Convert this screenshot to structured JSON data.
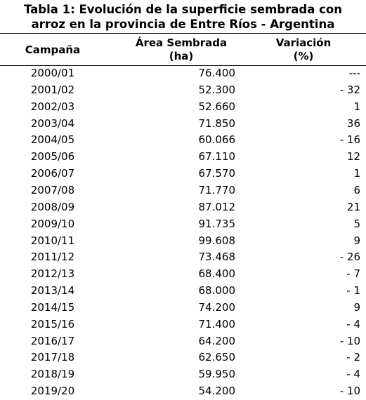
{
  "title": [
    "Tabla 1: Evolución de la superficie sembrada con",
    "arroz en la provincia de Entre Ríos - Argentina"
  ],
  "table": {
    "headers": [
      [
        "Campaña"
      ],
      [
        "Área Sembrada",
        "(ha)"
      ],
      [
        "Variación",
        "(%)"
      ]
    ],
    "rows": [
      [
        "2000/01",
        "76.400",
        "---"
      ],
      [
        "2001/02",
        "52.300",
        "- 32"
      ],
      [
        "2002/03",
        "52.660",
        "1"
      ],
      [
        "2003/04",
        "71.850",
        "36"
      ],
      [
        "2004/05",
        "60.066",
        "- 16"
      ],
      [
        "2005/06",
        "67.110",
        "12"
      ],
      [
        "2006/07",
        "67.570",
        "1"
      ],
      [
        "2007/08",
        "71.770",
        "6"
      ],
      [
        "2008/09",
        "87.012",
        "21"
      ],
      [
        "2009/10",
        "91.735",
        "5"
      ],
      [
        "2010/11",
        "99.608",
        "9"
      ],
      [
        "2011/12",
        "73.468",
        "- 26"
      ],
      [
        "2012/13",
        "68.400",
        "- 7"
      ],
      [
        "2013/14",
        "68.000",
        "- 1"
      ],
      [
        "2014/15",
        "74.200",
        "9"
      ],
      [
        "2015/16",
        "71.400",
        "- 4"
      ],
      [
        "2016/17",
        "64.200",
        "- 10"
      ],
      [
        "2017/18",
        "62.650",
        "- 2"
      ],
      [
        "2018/19",
        "59.950",
        "- 4"
      ],
      [
        "2019/20",
        "54.200",
        "- 10"
      ]
    ]
  }
}
